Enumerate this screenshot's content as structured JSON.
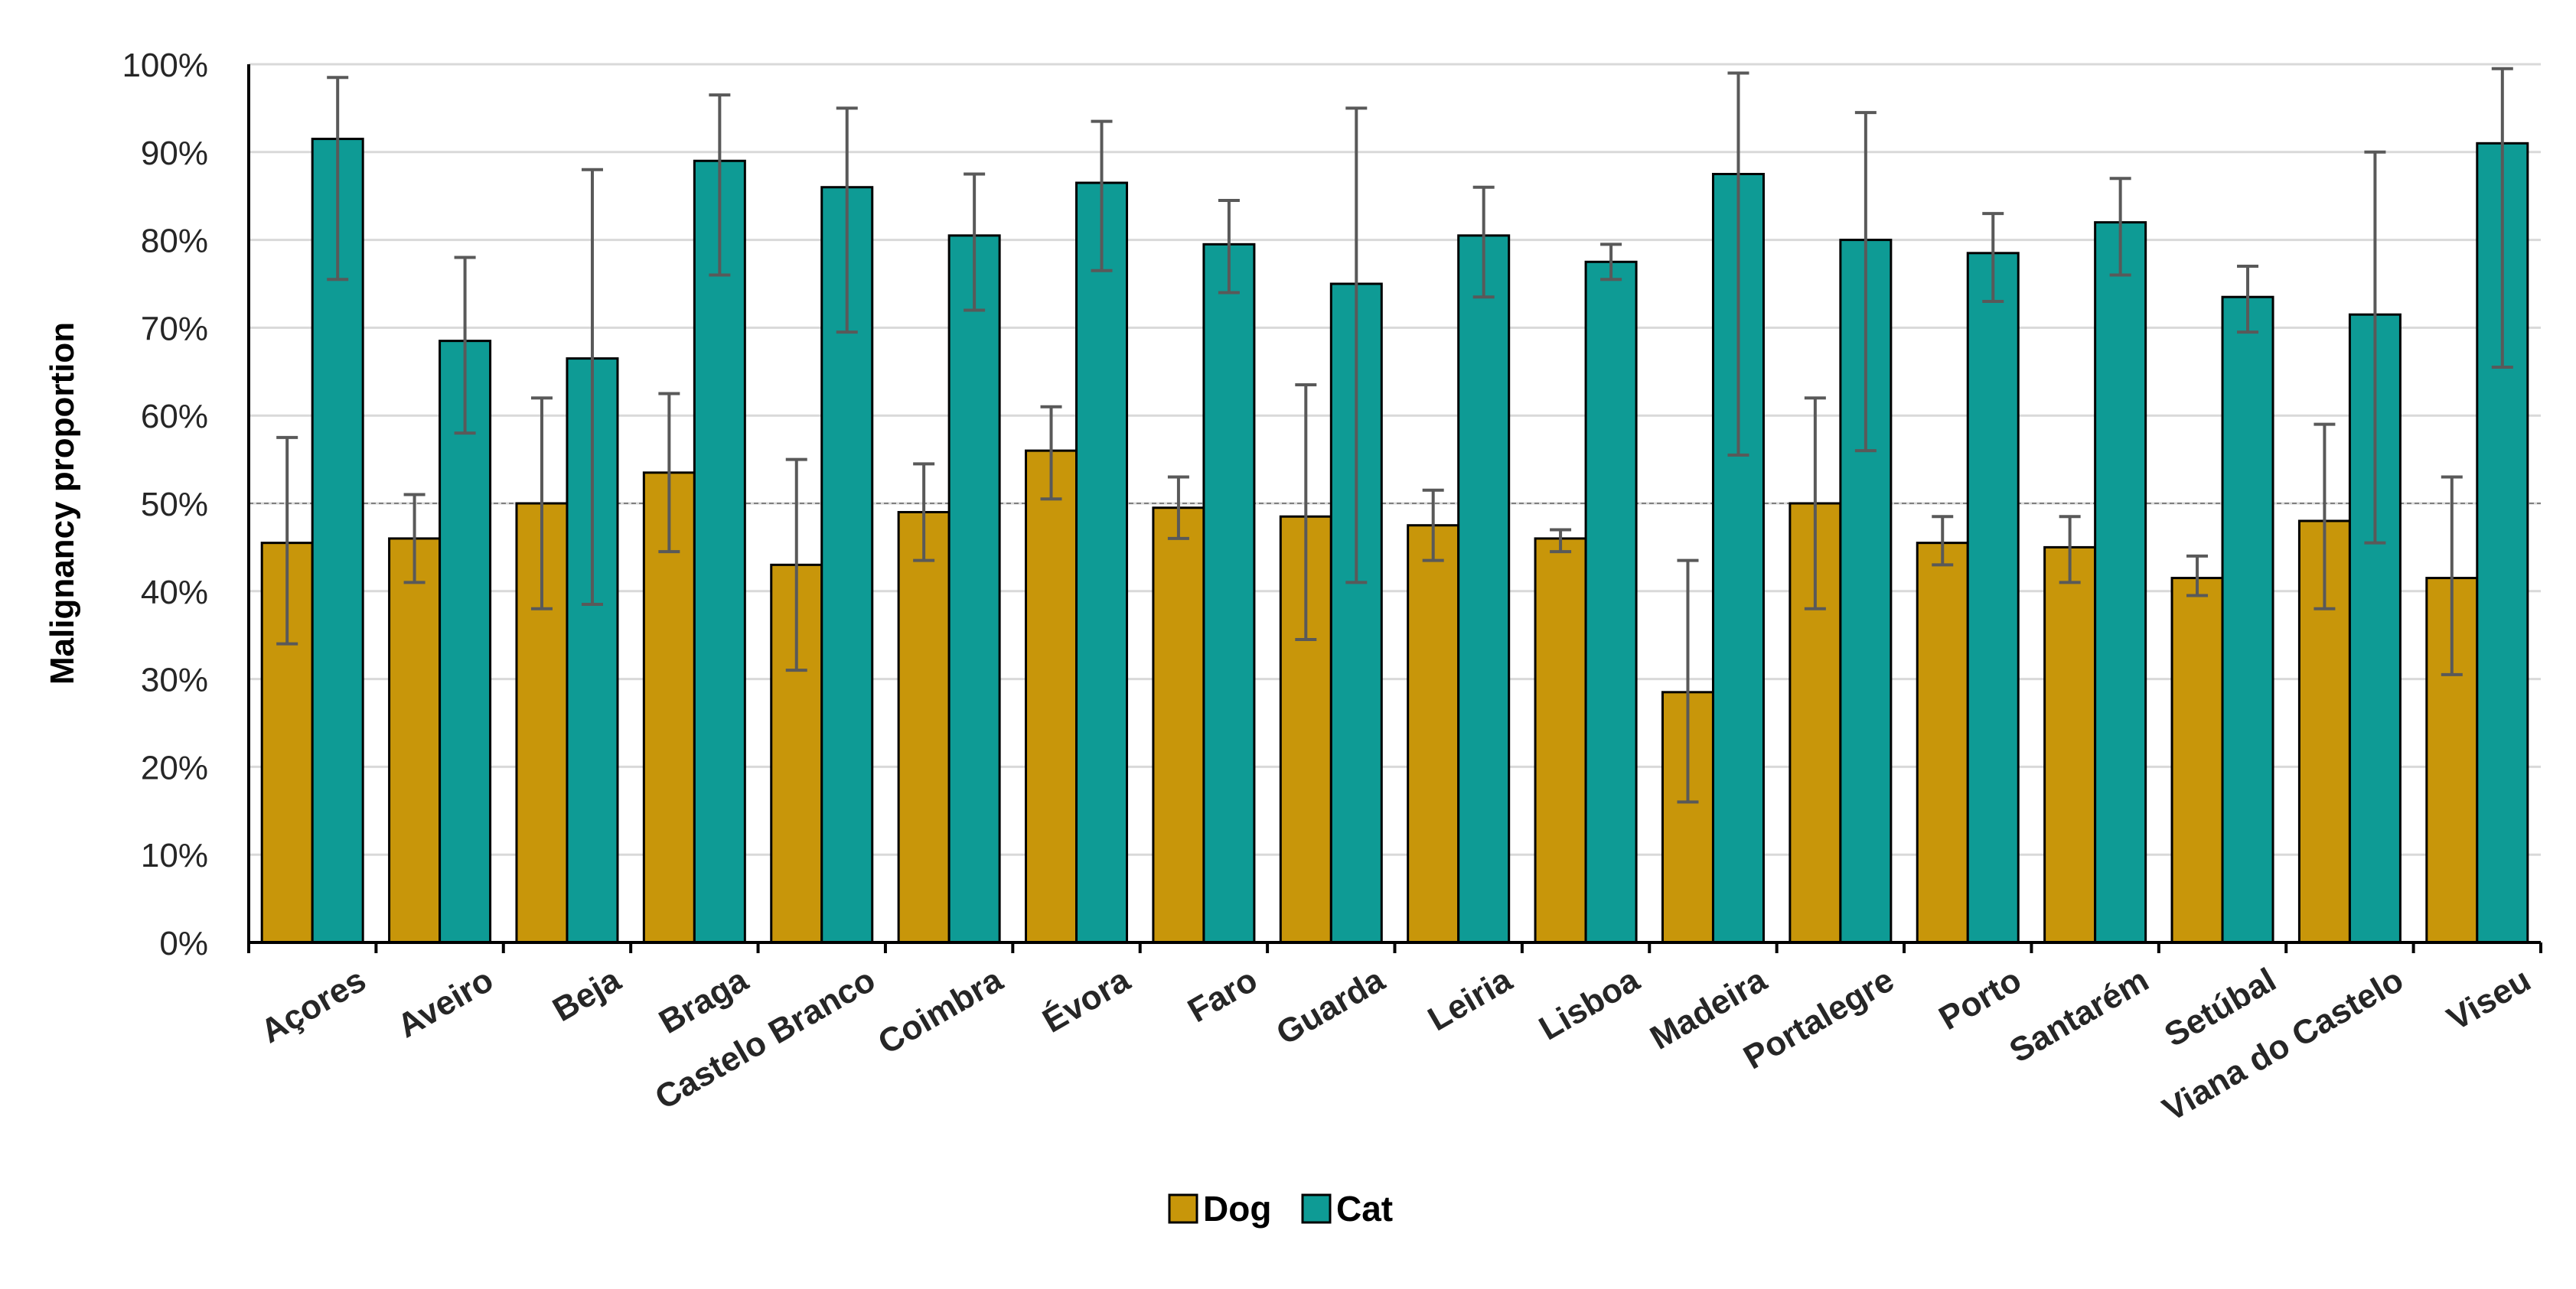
{
  "chart_data": {
    "type": "bar",
    "title": "",
    "xlabel": "",
    "ylabel": "Malignancy proportion",
    "ylim": [
      0,
      100
    ],
    "y_tick_labels": [
      "0%",
      "10%",
      "20%",
      "30%",
      "40%",
      "50%",
      "60%",
      "70%",
      "80%",
      "90%",
      "100%"
    ],
    "grid": true,
    "reference_line": 50,
    "legend_position": "bottom-center",
    "categories": [
      "Açores",
      "Aveiro",
      "Beja",
      "Braga",
      "Castelo Branco",
      "Coimbra",
      "Évora",
      "Faro",
      "Guarda",
      "Leiria",
      "Lisboa",
      "Madeira",
      "Portalegre",
      "Porto",
      "Santarém",
      "Setúbal",
      "Viana do Castelo",
      "Viseu"
    ],
    "series": [
      {
        "name": "Dog",
        "color": "#C8960A",
        "values": [
          45.5,
          46,
          50,
          53.5,
          43,
          49,
          56,
          49.5,
          48.5,
          47.5,
          46,
          28.5,
          50,
          45.5,
          45,
          41.5,
          48,
          41.5
        ],
        "error_low": [
          34,
          41,
          38,
          44.5,
          31,
          43.5,
          50.5,
          46,
          34.5,
          43.5,
          44.5,
          16,
          38,
          43,
          41,
          39.5,
          38,
          30.5
        ],
        "error_high": [
          57.5,
          51,
          62,
          62.5,
          55,
          54.5,
          61,
          53,
          63.5,
          51.5,
          47,
          43.5,
          62,
          48.5,
          48.5,
          44,
          59,
          53
        ]
      },
      {
        "name": "Cat",
        "color": "#0E9B95",
        "values": [
          91.5,
          68.5,
          66.5,
          89,
          86,
          80.5,
          86.5,
          79.5,
          75,
          80.5,
          77.5,
          87.5,
          80,
          78.5,
          82,
          73.5,
          71.5,
          91
        ],
        "error_low": [
          75.5,
          58,
          38.5,
          76,
          69.5,
          72,
          76.5,
          74,
          41,
          73.5,
          75.5,
          55.5,
          56,
          73,
          76,
          69.5,
          45.5,
          65.5
        ],
        "error_high": [
          98.5,
          78,
          88,
          96.5,
          95,
          87.5,
          93.5,
          84.5,
          95,
          86,
          79.5,
          99,
          94.5,
          83,
          87,
          77,
          90,
          99.5
        ]
      }
    ]
  }
}
